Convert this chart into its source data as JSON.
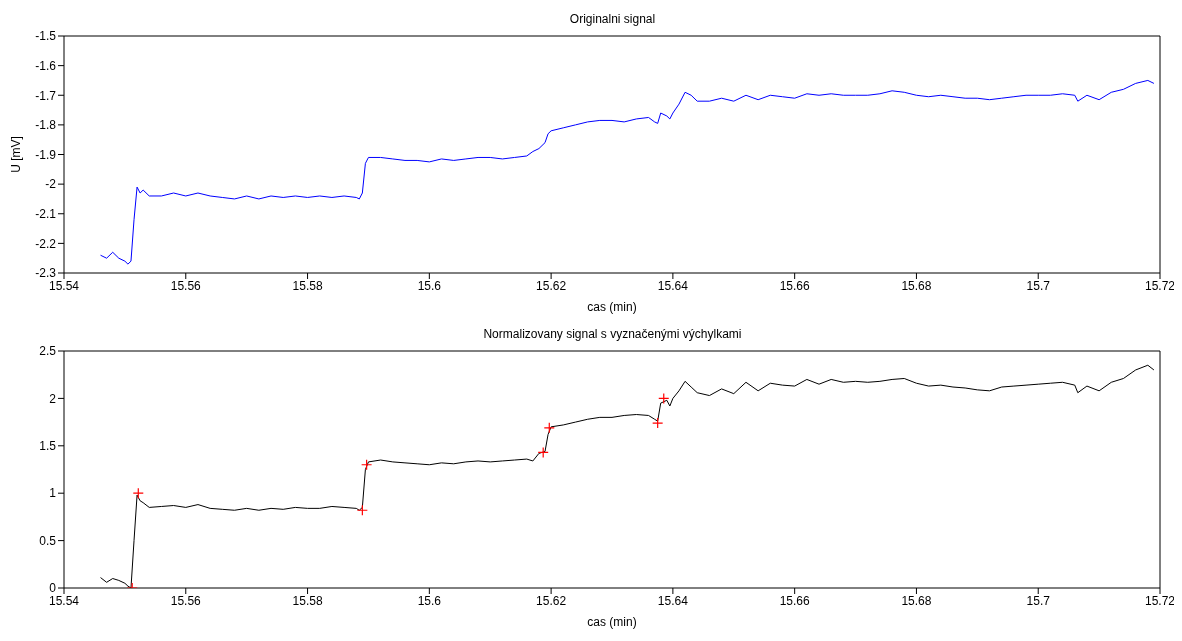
{
  "chart_data": [
    {
      "type": "line",
      "title": "Originalni signal",
      "xlabel": "cas (min)",
      "ylabel": "U [mV]",
      "xlim": [
        15.54,
        15.72
      ],
      "xticks": [
        15.54,
        15.56,
        15.58,
        15.6,
        15.62,
        15.64,
        15.66,
        15.68,
        15.7,
        15.72
      ],
      "ylim": [
        -2.3,
        -1.5
      ],
      "yticks": [
        -2.3,
        -2.2,
        -2.1,
        -2,
        -1.9,
        -1.8,
        -1.7,
        -1.6,
        -1.5
      ],
      "grid": false,
      "series": [
        {
          "color": "#0000ff",
          "x": [
            15.546,
            15.547,
            15.548,
            15.549,
            15.55,
            15.5505,
            15.551,
            15.5515,
            15.552,
            15.5525,
            15.553,
            15.554,
            15.556,
            15.558,
            15.56,
            15.562,
            15.564,
            15.566,
            15.568,
            15.57,
            15.572,
            15.574,
            15.576,
            15.578,
            15.58,
            15.582,
            15.584,
            15.586,
            15.588,
            15.5885,
            15.589,
            15.5895,
            15.59,
            15.592,
            15.594,
            15.596,
            15.598,
            15.6,
            15.602,
            15.604,
            15.606,
            15.608,
            15.61,
            15.612,
            15.614,
            15.616,
            15.617,
            15.618,
            15.619,
            15.6195,
            15.62,
            15.622,
            15.624,
            15.626,
            15.628,
            15.63,
            15.632,
            15.634,
            15.636,
            15.637,
            15.6375,
            15.638,
            15.639,
            15.6395,
            15.64,
            15.641,
            15.642,
            15.643,
            15.644,
            15.646,
            15.648,
            15.65,
            15.652,
            15.654,
            15.656,
            15.658,
            15.66,
            15.662,
            15.664,
            15.666,
            15.668,
            15.67,
            15.672,
            15.674,
            15.676,
            15.678,
            15.68,
            15.682,
            15.684,
            15.686,
            15.688,
            15.69,
            15.692,
            15.694,
            15.696,
            15.698,
            15.7,
            15.702,
            15.704,
            15.706,
            15.7065,
            15.708,
            15.71,
            15.712,
            15.714,
            15.716,
            15.718,
            15.719
          ],
          "values": [
            -2.24,
            -2.25,
            -2.23,
            -2.25,
            -2.26,
            -2.27,
            -2.26,
            -2.12,
            -2.01,
            -2.03,
            -2.02,
            -2.04,
            -2.04,
            -2.03,
            -2.04,
            -2.03,
            -2.04,
            -2.045,
            -2.05,
            -2.04,
            -2.05,
            -2.04,
            -2.045,
            -2.04,
            -2.045,
            -2.04,
            -2.045,
            -2.04,
            -2.045,
            -2.05,
            -2.03,
            -1.93,
            -1.91,
            -1.91,
            -1.915,
            -1.92,
            -1.92,
            -1.925,
            -1.915,
            -1.92,
            -1.915,
            -1.91,
            -1.91,
            -1.915,
            -1.91,
            -1.905,
            -1.89,
            -1.88,
            -1.86,
            -1.83,
            -1.82,
            -1.81,
            -1.8,
            -1.79,
            -1.785,
            -1.785,
            -1.79,
            -1.78,
            -1.775,
            -1.79,
            -1.795,
            -1.76,
            -1.77,
            -1.78,
            -1.76,
            -1.73,
            -1.69,
            -1.7,
            -1.72,
            -1.72,
            -1.71,
            -1.72,
            -1.7,
            -1.715,
            -1.7,
            -1.705,
            -1.71,
            -1.695,
            -1.7,
            -1.695,
            -1.7,
            -1.7,
            -1.7,
            -1.695,
            -1.685,
            -1.69,
            -1.7,
            -1.705,
            -1.7,
            -1.705,
            -1.71,
            -1.71,
            -1.715,
            -1.71,
            -1.705,
            -1.7,
            -1.7,
            -1.7,
            -1.695,
            -1.7,
            -1.72,
            -1.7,
            -1.715,
            -1.69,
            -1.68,
            -1.66,
            -1.65,
            -1.66
          ]
        }
      ]
    },
    {
      "type": "line",
      "title": "Normalizovany signal s vyznačenými výchylkami",
      "xlabel": "cas (min)",
      "xlim": [
        15.54,
        15.72
      ],
      "xticks": [
        15.54,
        15.56,
        15.58,
        15.6,
        15.62,
        15.64,
        15.66,
        15.68,
        15.7,
        15.72
      ],
      "ylim": [
        0,
        2.5
      ],
      "yticks": [
        0,
        0.5,
        1,
        1.5,
        2,
        2.5
      ],
      "grid": false,
      "series": [
        {
          "color": "#000000",
          "x": [
            15.546,
            15.547,
            15.548,
            15.549,
            15.55,
            15.5505,
            15.551,
            15.5515,
            15.552,
            15.5525,
            15.553,
            15.554,
            15.556,
            15.558,
            15.56,
            15.562,
            15.564,
            15.566,
            15.568,
            15.57,
            15.572,
            15.574,
            15.576,
            15.578,
            15.58,
            15.582,
            15.584,
            15.586,
            15.588,
            15.5885,
            15.589,
            15.5895,
            15.59,
            15.592,
            15.594,
            15.596,
            15.598,
            15.6,
            15.602,
            15.604,
            15.606,
            15.608,
            15.61,
            15.612,
            15.614,
            15.616,
            15.617,
            15.618,
            15.619,
            15.6195,
            15.62,
            15.622,
            15.624,
            15.626,
            15.628,
            15.63,
            15.632,
            15.634,
            15.636,
            15.637,
            15.6375,
            15.638,
            15.639,
            15.6395,
            15.64,
            15.641,
            15.642,
            15.643,
            15.644,
            15.646,
            15.648,
            15.65,
            15.652,
            15.654,
            15.656,
            15.658,
            15.66,
            15.662,
            15.664,
            15.666,
            15.668,
            15.67,
            15.672,
            15.674,
            15.676,
            15.678,
            15.68,
            15.682,
            15.684,
            15.686,
            15.688,
            15.69,
            15.692,
            15.694,
            15.696,
            15.698,
            15.7,
            15.702,
            15.704,
            15.706,
            15.7065,
            15.708,
            15.71,
            15.712,
            15.714,
            15.716,
            15.718,
            15.719
          ],
          "values": [
            0.11,
            0.06,
            0.1,
            0.08,
            0.05,
            0.02,
            0,
            0.5,
            0.98,
            0.92,
            0.9,
            0.85,
            0.86,
            0.87,
            0.85,
            0.88,
            0.84,
            0.83,
            0.82,
            0.84,
            0.82,
            0.84,
            0.83,
            0.85,
            0.84,
            0.84,
            0.86,
            0.85,
            0.84,
            0.82,
            0.85,
            1.25,
            1.33,
            1.35,
            1.33,
            1.32,
            1.31,
            1.3,
            1.32,
            1.31,
            1.33,
            1.34,
            1.33,
            1.34,
            1.35,
            1.36,
            1.34,
            1.42,
            1.44,
            1.62,
            1.7,
            1.72,
            1.75,
            1.78,
            1.8,
            1.8,
            1.82,
            1.83,
            1.82,
            1.78,
            1.76,
            1.95,
            1.98,
            1.92,
            2,
            2.08,
            2.18,
            2.12,
            2.06,
            2.03,
            2.1,
            2.05,
            2.17,
            2.08,
            2.16,
            2.14,
            2.13,
            2.2,
            2.15,
            2.2,
            2.17,
            2.18,
            2.17,
            2.18,
            2.2,
            2.21,
            2.16,
            2.13,
            2.14,
            2.12,
            2.11,
            2.09,
            2.08,
            2.12,
            2.13,
            2.14,
            2.15,
            2.16,
            2.17,
            2.14,
            2.06,
            2.13,
            2.08,
            2.17,
            2.21,
            2.3,
            2.35,
            2.3
          ]
        },
        {
          "type": "scatter",
          "color": "#ff0000",
          "marker": "cross",
          "x": [
            15.5512,
            15.5522,
            15.589,
            15.5897,
            15.6187,
            15.6197,
            15.6375,
            15.6385
          ],
          "values": [
            0,
            1,
            0.82,
            1.3,
            1.43,
            1.69,
            1.74,
            2
          ]
        }
      ]
    }
  ]
}
